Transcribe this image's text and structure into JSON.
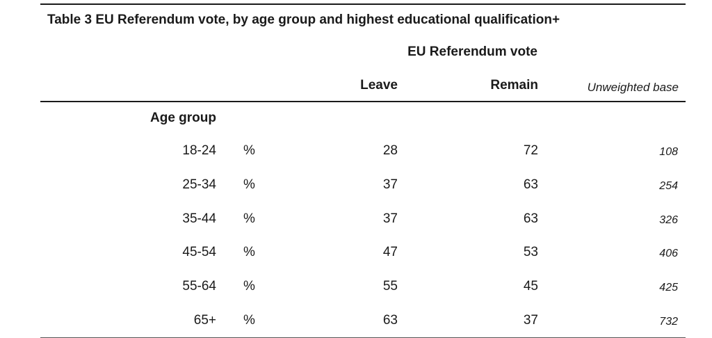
{
  "table": {
    "title": "Table 3 EU Referendum vote, by age group and highest educational qualification+",
    "super_header": "EU Referendum vote",
    "columns": {
      "leave": "Leave",
      "remain": "Remain",
      "base": "Unweighted base"
    },
    "section_label": "Age group",
    "rows": [
      {
        "age": "18-24",
        "unit": "%",
        "leave": "28",
        "remain": "72",
        "base": "108"
      },
      {
        "age": "25-34",
        "unit": "%",
        "leave": "37",
        "remain": "63",
        "base": "254"
      },
      {
        "age": "35-44",
        "unit": "%",
        "leave": "37",
        "remain": "63",
        "base": "326"
      },
      {
        "age": "45-54",
        "unit": "%",
        "leave": "47",
        "remain": "53",
        "base": "406"
      },
      {
        "age": "55-64",
        "unit": "%",
        "leave": "55",
        "remain": "45",
        "base": "425"
      },
      {
        "age": "65+",
        "unit": "%",
        "leave": "63",
        "remain": "37",
        "base": "732"
      }
    ]
  }
}
